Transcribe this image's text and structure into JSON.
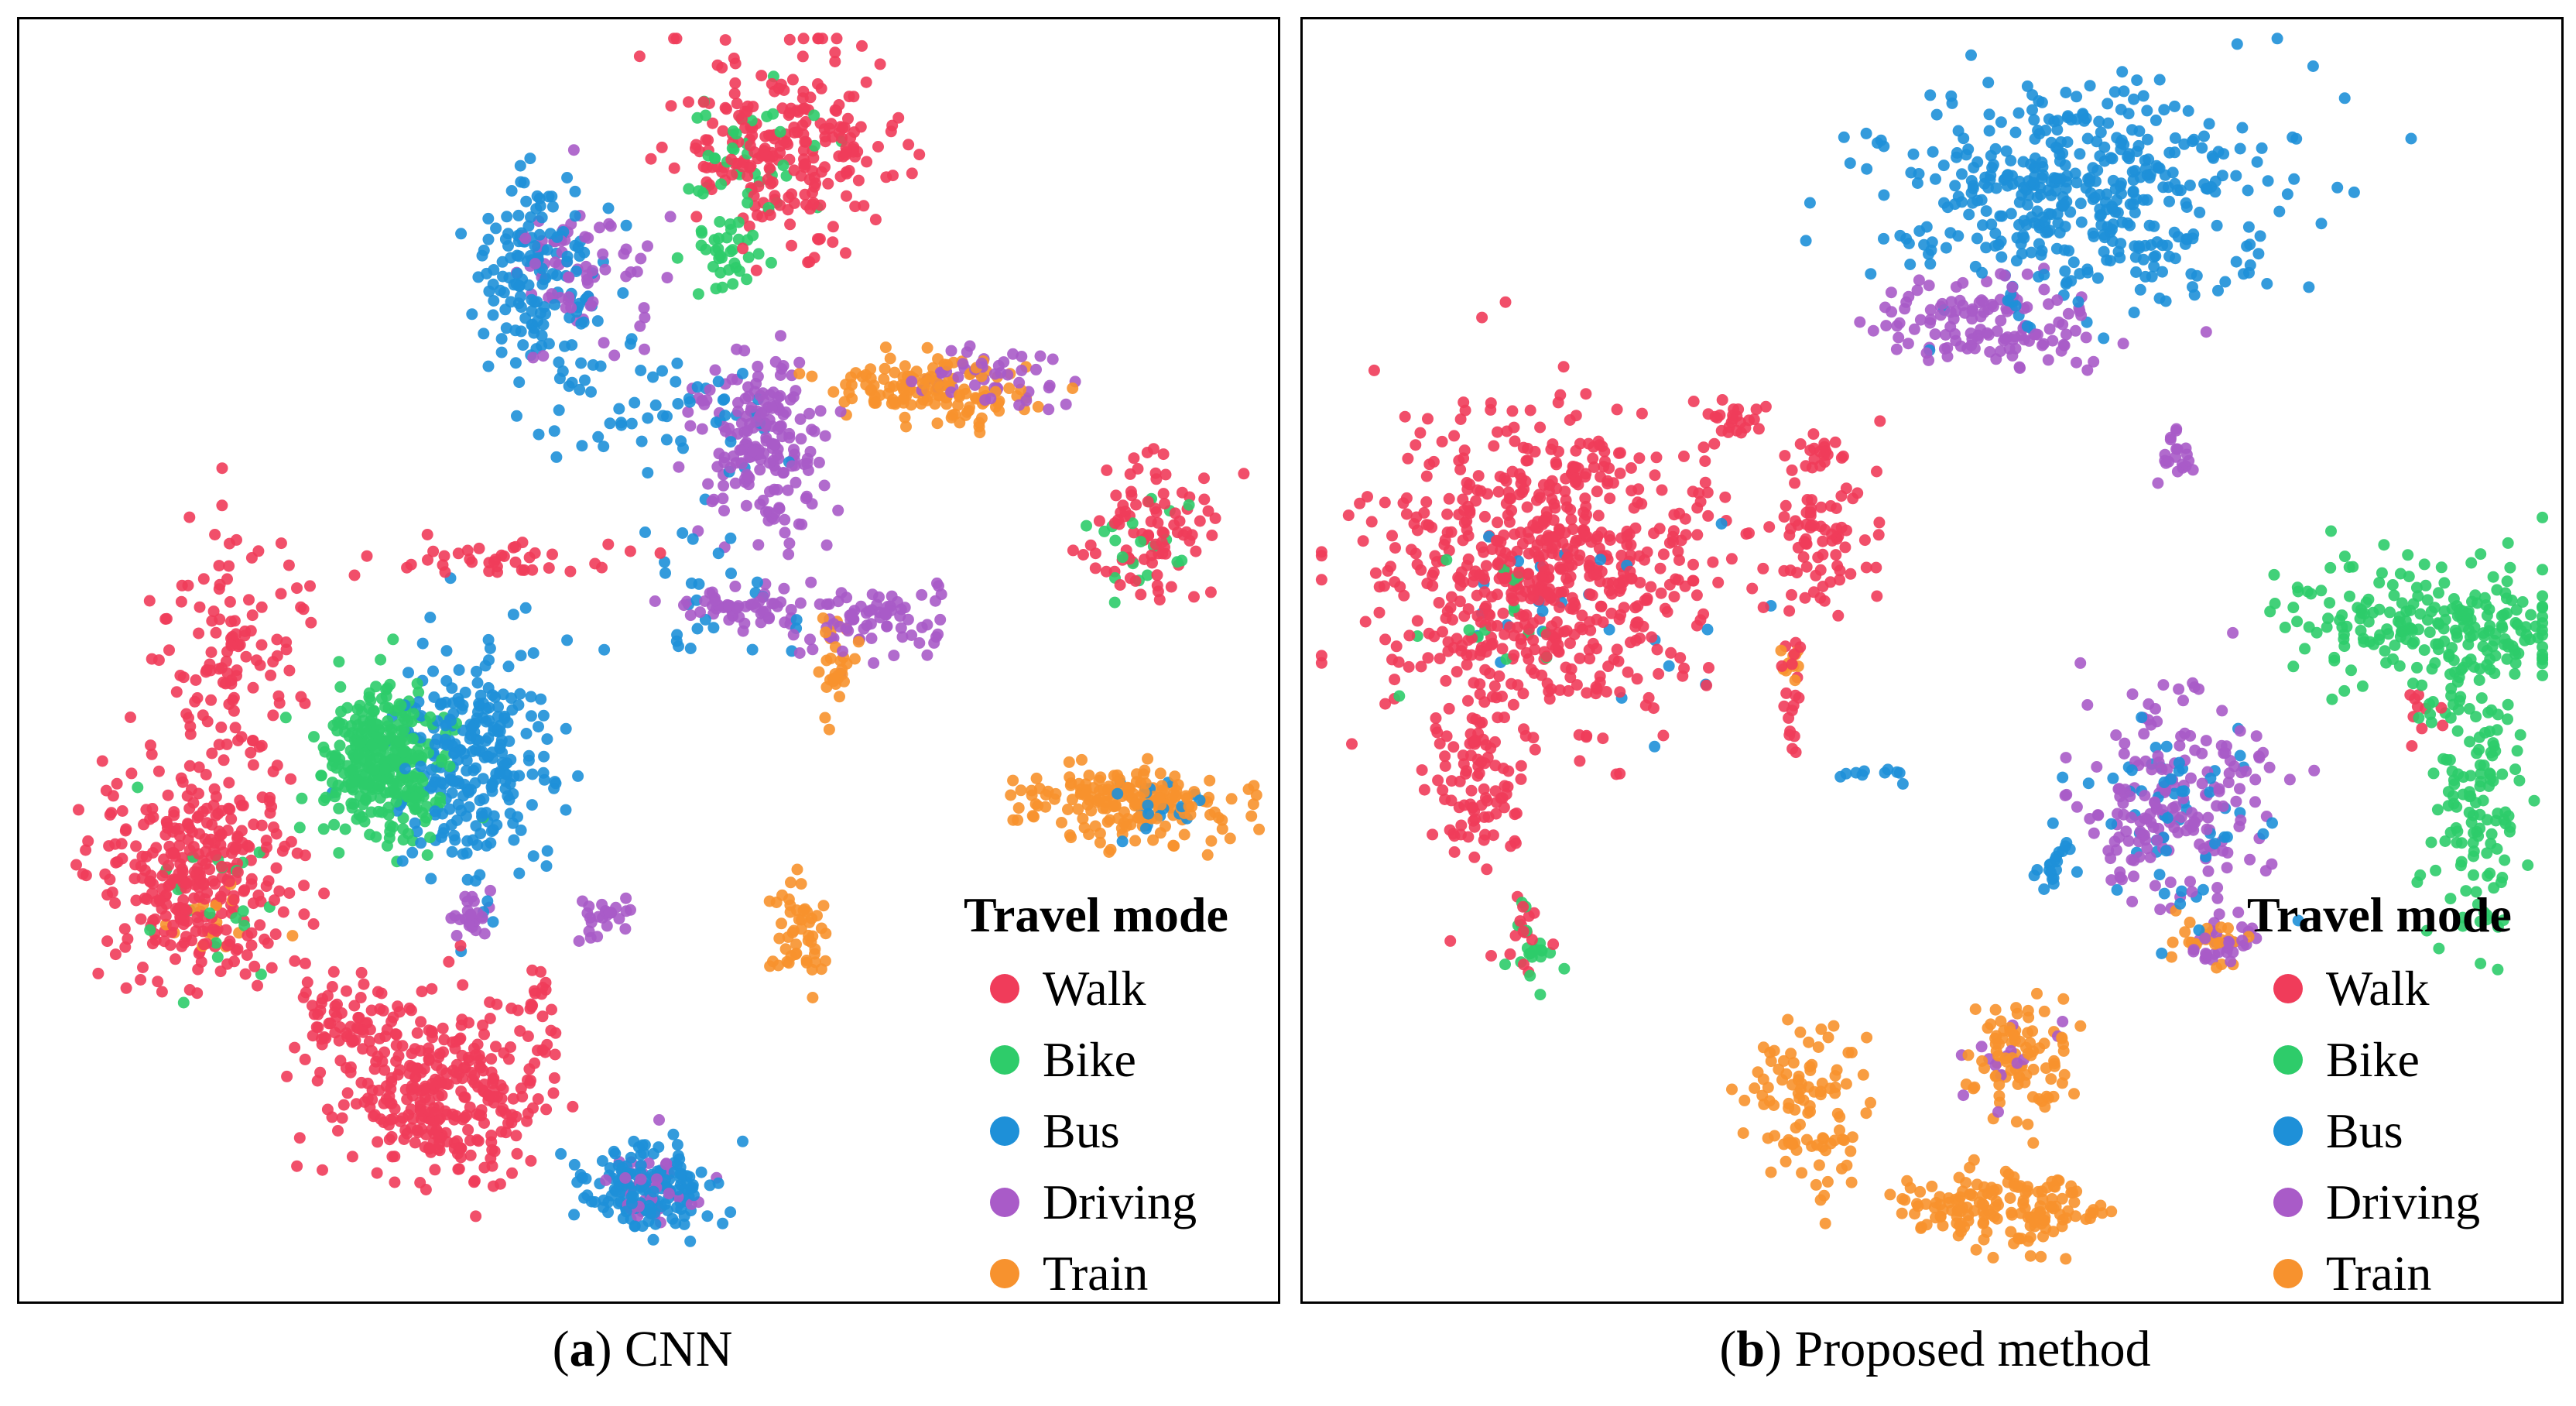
{
  "legend": {
    "title": "Travel mode",
    "items": [
      {
        "label": "Walk",
        "color": "#f03c5a"
      },
      {
        "label": "Bike",
        "color": "#2ecc6a"
      },
      {
        "label": "Bus",
        "color": "#1e90d8"
      },
      {
        "label": "Driving",
        "color": "#a95bc8"
      },
      {
        "label": "Train",
        "color": "#f7922e"
      }
    ]
  },
  "captions": {
    "a": {
      "letter": "a",
      "text": " CNN"
    },
    "b": {
      "letter": "b",
      "text": " Proposed method"
    }
  },
  "chart_data": [
    {
      "type": "scatter",
      "title": "",
      "panel": "(a) CNN",
      "xlabel": "",
      "ylabel": "",
      "axes_visible": false,
      "grid": false,
      "legend_position": "bottom-right",
      "series": [
        {
          "name": "Walk",
          "color": "#f03c5a",
          "clusters": [
            {
              "cx": 0.61,
              "cy": 0.1,
              "sx": 0.045,
              "sy": 0.035,
              "n": 240
            },
            {
              "cx": 0.14,
              "cy": 0.67,
              "sx": 0.04,
              "sy": 0.04,
              "n": 320
            },
            {
              "cx": 0.34,
              "cy": 0.84,
              "sx": 0.04,
              "sy": 0.035,
              "n": 320
            },
            {
              "cx": 0.26,
              "cy": 0.78,
              "sx": 0.02,
              "sy": 0.02,
              "n": 60
            },
            {
              "cx": 0.17,
              "cy": 0.5,
              "sx": 0.03,
              "sy": 0.05,
              "n": 130
            },
            {
              "cx": 0.38,
              "cy": 0.42,
              "sx": 0.05,
              "sy": 0.008,
              "n": 40
            },
            {
              "cx": 0.9,
              "cy": 0.4,
              "sx": 0.03,
              "sy": 0.03,
              "n": 90
            },
            {
              "cx": 0.41,
              "cy": 0.77,
              "sx": 0.01,
              "sy": 0.02,
              "n": 20
            }
          ]
        },
        {
          "name": "Bike",
          "color": "#2ecc6a",
          "clusters": [
            {
              "cx": 0.29,
              "cy": 0.58,
              "sx": 0.025,
              "sy": 0.03,
              "n": 330
            },
            {
              "cx": 0.58,
              "cy": 0.1,
              "sx": 0.03,
              "sy": 0.025,
              "n": 40
            },
            {
              "cx": 0.56,
              "cy": 0.19,
              "sx": 0.015,
              "sy": 0.015,
              "n": 35
            },
            {
              "cx": 0.89,
              "cy": 0.41,
              "sx": 0.02,
              "sy": 0.02,
              "n": 20
            },
            {
              "cx": 0.15,
              "cy": 0.68,
              "sx": 0.03,
              "sy": 0.03,
              "n": 20
            }
          ]
        },
        {
          "name": "Bus",
          "color": "#1e90d8",
          "clusters": [
            {
              "cx": 0.36,
              "cy": 0.58,
              "sx": 0.03,
              "sy": 0.045,
              "n": 260
            },
            {
              "cx": 0.41,
              "cy": 0.2,
              "sx": 0.025,
              "sy": 0.035,
              "n": 150
            },
            {
              "cx": 0.5,
              "cy": 0.91,
              "sx": 0.025,
              "sy": 0.018,
              "n": 150
            },
            {
              "cx": 0.5,
              "cy": 0.3,
              "sx": 0.05,
              "sy": 0.025,
              "n": 60
            },
            {
              "cx": 0.55,
              "cy": 0.45,
              "sx": 0.04,
              "sy": 0.04,
              "n": 30
            },
            {
              "cx": 0.89,
              "cy": 0.61,
              "sx": 0.02,
              "sy": 0.01,
              "n": 20
            }
          ]
        },
        {
          "name": "Driving",
          "color": "#a95bc8",
          "clusters": [
            {
              "cx": 0.59,
              "cy": 0.33,
              "sx": 0.025,
              "sy": 0.035,
              "n": 190
            },
            {
              "cx": 0.57,
              "cy": 0.46,
              "sx": 0.025,
              "sy": 0.01,
              "n": 50
            },
            {
              "cx": 0.68,
              "cy": 0.47,
              "sx": 0.035,
              "sy": 0.015,
              "n": 80
            },
            {
              "cx": 0.45,
              "cy": 0.19,
              "sx": 0.025,
              "sy": 0.03,
              "n": 70
            },
            {
              "cx": 0.36,
              "cy": 0.7,
              "sx": 0.01,
              "sy": 0.008,
              "n": 25
            },
            {
              "cx": 0.47,
              "cy": 0.7,
              "sx": 0.012,
              "sy": 0.01,
              "n": 25
            },
            {
              "cx": 0.5,
              "cy": 0.91,
              "sx": 0.02,
              "sy": 0.015,
              "n": 40
            },
            {
              "cx": 0.77,
              "cy": 0.28,
              "sx": 0.03,
              "sy": 0.012,
              "n": 50
            }
          ]
        },
        {
          "name": "Train",
          "color": "#f7922e",
          "clusters": [
            {
              "cx": 0.72,
              "cy": 0.29,
              "sx": 0.04,
              "sy": 0.012,
              "n": 140
            },
            {
              "cx": 0.88,
              "cy": 0.61,
              "sx": 0.045,
              "sy": 0.015,
              "n": 180
            },
            {
              "cx": 0.62,
              "cy": 0.71,
              "sx": 0.012,
              "sy": 0.018,
              "n": 50
            },
            {
              "cx": 0.65,
              "cy": 0.51,
              "sx": 0.01,
              "sy": 0.02,
              "n": 30
            },
            {
              "cx": 0.16,
              "cy": 0.7,
              "sx": 0.03,
              "sy": 0.02,
              "n": 15
            }
          ]
        }
      ]
    },
    {
      "type": "scatter",
      "title": "",
      "panel": "(b) Proposed method",
      "xlabel": "",
      "ylabel": "",
      "axes_visible": false,
      "grid": false,
      "legend_position": "bottom-right",
      "series": [
        {
          "name": "Walk",
          "color": "#f03c5a",
          "clusters": [
            {
              "cx": 0.19,
              "cy": 0.43,
              "sx": 0.065,
              "sy": 0.06,
              "n": 650
            },
            {
              "cx": 0.14,
              "cy": 0.6,
              "sx": 0.02,
              "sy": 0.045,
              "n": 100
            },
            {
              "cx": 0.41,
              "cy": 0.4,
              "sx": 0.02,
              "sy": 0.03,
              "n": 80
            },
            {
              "cx": 0.34,
              "cy": 0.31,
              "sx": 0.015,
              "sy": 0.008,
              "n": 25
            },
            {
              "cx": 0.41,
              "cy": 0.34,
              "sx": 0.01,
              "sy": 0.008,
              "n": 15
            },
            {
              "cx": 0.39,
              "cy": 0.53,
              "sx": 0.004,
              "sy": 0.025,
              "n": 20
            },
            {
              "cx": 0.18,
              "cy": 0.72,
              "sx": 0.01,
              "sy": 0.015,
              "n": 15
            },
            {
              "cx": 0.89,
              "cy": 0.55,
              "sx": 0.01,
              "sy": 0.02,
              "n": 10
            }
          ]
        },
        {
          "name": "Bike",
          "color": "#2ecc6a",
          "clusters": [
            {
              "cx": 0.9,
              "cy": 0.47,
              "sx": 0.06,
              "sy": 0.025,
              "n": 220
            },
            {
              "cx": 0.93,
              "cy": 0.6,
              "sx": 0.02,
              "sy": 0.06,
              "n": 140
            },
            {
              "cx": 0.18,
              "cy": 0.73,
              "sx": 0.01,
              "sy": 0.018,
              "n": 20
            },
            {
              "cx": 0.15,
              "cy": 0.45,
              "sx": 0.04,
              "sy": 0.04,
              "n": 15
            }
          ]
        },
        {
          "name": "Bus",
          "color": "#1e90d8",
          "clusters": [
            {
              "cx": 0.62,
              "cy": 0.14,
              "sx": 0.075,
              "sy": 0.045,
              "n": 450
            },
            {
              "cx": 0.7,
              "cy": 0.62,
              "sx": 0.035,
              "sy": 0.035,
              "n": 60
            },
            {
              "cx": 0.6,
              "cy": 0.66,
              "sx": 0.01,
              "sy": 0.012,
              "n": 20
            },
            {
              "cx": 0.23,
              "cy": 0.46,
              "sx": 0.06,
              "sy": 0.05,
              "n": 25
            },
            {
              "cx": 0.45,
              "cy": 0.59,
              "sx": 0.015,
              "sy": 0.005,
              "n": 10
            }
          ]
        },
        {
          "name": "Driving",
          "color": "#a95bc8",
          "clusters": [
            {
              "cx": 0.55,
              "cy": 0.24,
              "sx": 0.05,
              "sy": 0.018,
              "n": 130
            },
            {
              "cx": 0.69,
              "cy": 0.61,
              "sx": 0.035,
              "sy": 0.04,
              "n": 190
            },
            {
              "cx": 0.69,
              "cy": 0.34,
              "sx": 0.01,
              "sy": 0.01,
              "n": 20
            },
            {
              "cx": 0.73,
              "cy": 0.72,
              "sx": 0.015,
              "sy": 0.01,
              "n": 30
            },
            {
              "cx": 0.56,
              "cy": 0.8,
              "sx": 0.015,
              "sy": 0.02,
              "n": 15
            }
          ]
        },
        {
          "name": "Train",
          "color": "#f7922e",
          "clusters": [
            {
              "cx": 0.4,
              "cy": 0.85,
              "sx": 0.025,
              "sy": 0.03,
              "n": 100
            },
            {
              "cx": 0.57,
              "cy": 0.81,
              "sx": 0.02,
              "sy": 0.025,
              "n": 90
            },
            {
              "cx": 0.55,
              "cy": 0.93,
              "sx": 0.04,
              "sy": 0.015,
              "n": 160
            },
            {
              "cx": 0.72,
              "cy": 0.72,
              "sx": 0.015,
              "sy": 0.01,
              "n": 25
            },
            {
              "cx": 0.39,
              "cy": 0.51,
              "sx": 0.005,
              "sy": 0.01,
              "n": 10
            }
          ]
        }
      ]
    }
  ]
}
